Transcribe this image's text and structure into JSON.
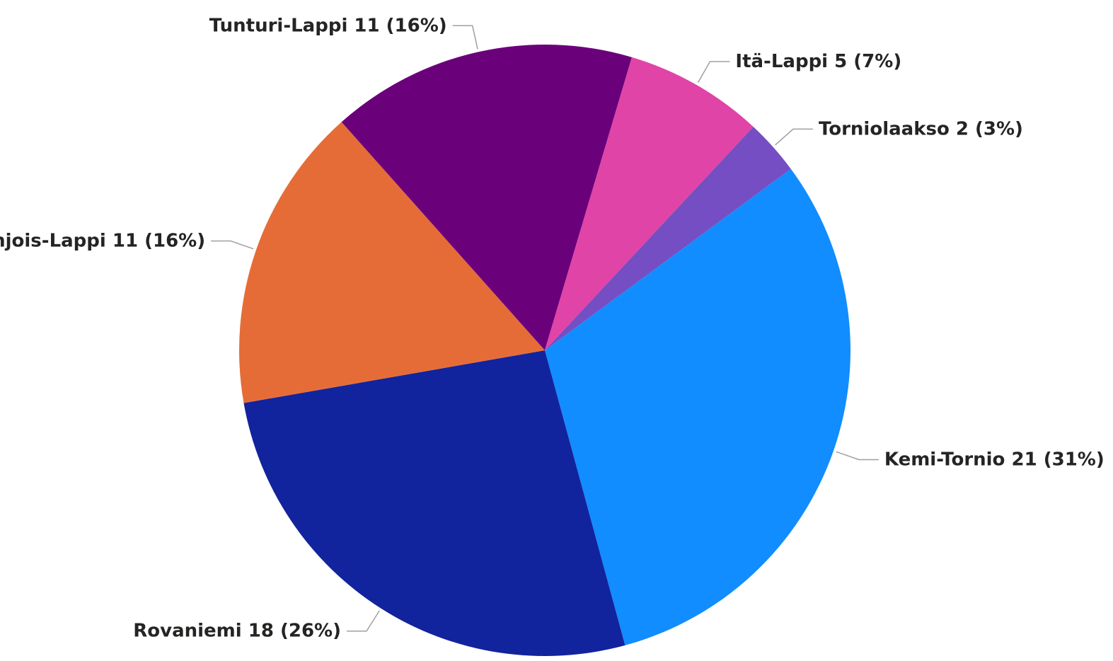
{
  "chart_data": {
    "type": "pie",
    "categories": [
      "Kemi-Tornio",
      "Rovaniemi",
      "Pohjois-Lappi",
      "Tunturi-Lappi",
      "Itä-Lappi",
      "Torniolaakso"
    ],
    "values": [
      21,
      18,
      11,
      11,
      5,
      2
    ],
    "value_labels": [
      "21 (31%)",
      "18 (26%)",
      "11 (16%)",
      "11 (16%)",
      "5 (7%)",
      "2 (3%)"
    ],
    "colors": [
      "#118dff",
      "#12239e",
      "#e66c37",
      "#6b007b",
      "#e044a7",
      "#744ec2"
    ]
  }
}
